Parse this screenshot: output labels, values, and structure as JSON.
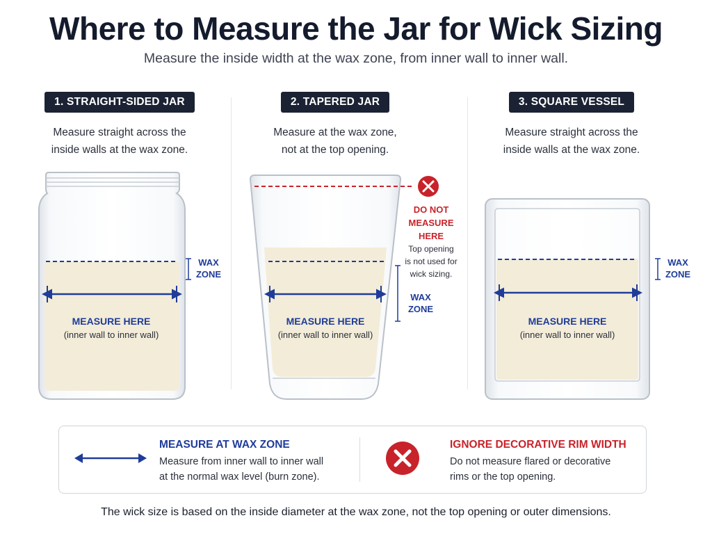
{
  "title": "Where to Measure the Jar for Wick Sizing",
  "subtitle": "Measure the inside width at the wax zone, from inner wall to inner wall.",
  "columns": [
    {
      "badge": "1. STRAIGHT-SIDED JAR",
      "desc_line1": "Measure straight across the",
      "desc_line2": "inside walls at the wax zone.",
      "measure_label": "MEASURE HERE",
      "measure_sub": "(inner wall to inner wall)",
      "wax_zone_line1": "WAX",
      "wax_zone_line2": "ZONE"
    },
    {
      "badge": "2. TAPERED JAR",
      "desc_line1": "Measure at the wax zone,",
      "desc_line2": "not at the top opening.",
      "measure_label": "MEASURE HERE",
      "measure_sub": "(inner wall to inner wall)",
      "wax_zone_line1": "WAX",
      "wax_zone_line2": "ZONE",
      "warning_line1": "DO NOT",
      "warning_line2": "MEASURE",
      "warning_line3": "HERE",
      "warning_note1": "Top opening",
      "warning_note2": "is not used for",
      "warning_note3": "wick sizing."
    },
    {
      "badge": "3. SQUARE VESSEL",
      "desc_line1": "Measure straight across the",
      "desc_line2": "inside walls at the wax zone.",
      "measure_label": "MEASURE HERE",
      "measure_sub": "(inner wall to inner wall)",
      "wax_zone_line1": "WAX",
      "wax_zone_line2": "ZONE"
    }
  ],
  "legend": {
    "measure_title": "MEASURE AT WAX ZONE",
    "measure_line1": "Measure from inner wall to inner wall",
    "measure_line2": "at the normal wax level (burn zone).",
    "ignore_title": "IGNORE DECORATIVE RIM WIDTH",
    "ignore_line1": "Do not measure flared or decorative",
    "ignore_line2": "rims or the top opening."
  },
  "footer": "The wick size is based on the inside diameter at the wax zone, not the top opening or outer dimensions.",
  "colors": {
    "accent_blue": "#1f3c9a",
    "warning_red": "#c8232a",
    "wax": "#f3ecd8",
    "badge_bg": "#1b2233"
  },
  "icons": [
    "double-arrow-icon",
    "x-circle-icon"
  ]
}
